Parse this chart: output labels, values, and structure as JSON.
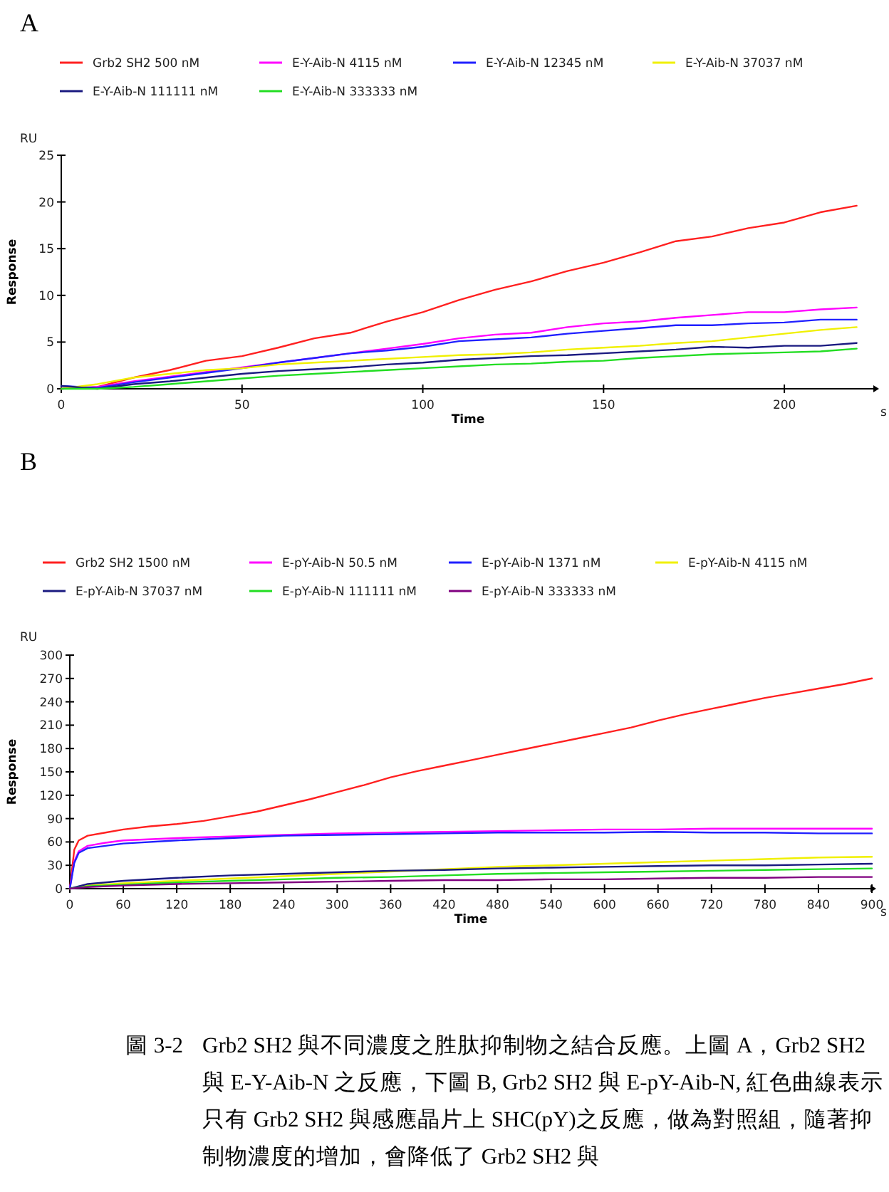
{
  "chart_data": [
    {
      "type": "line",
      "title": "A",
      "xlabel": "Time",
      "ylabel": "Response",
      "legend": "top",
      "xlim": [
        0,
        225
      ],
      "xticks": [
        0,
        50,
        100,
        150,
        200
      ],
      "ylim": [
        0,
        25
      ],
      "yticks": [
        0,
        5,
        10,
        15,
        20,
        25
      ],
      "annotations": [
        "RU",
        "s"
      ],
      "x": [
        0,
        10,
        20,
        30,
        40,
        50,
        60,
        70,
        80,
        90,
        100,
        110,
        120,
        130,
        140,
        150,
        160,
        170,
        180,
        190,
        200,
        210,
        220
      ],
      "series": [
        {
          "name": "Grb2 SH2 500 nM",
          "color": "#ff2020",
          "values": [
            0,
            0.2,
            1.2,
            2.0,
            3.0,
            3.5,
            4.4,
            5.4,
            6.0,
            7.2,
            8.2,
            9.5,
            10.6,
            11.5,
            12.6,
            13.5,
            14.6,
            15.8,
            16.3,
            17.2,
            17.8,
            18.9,
            19.6
          ]
        },
        {
          "name": "E-Y-Aib-N 4115 nM",
          "color": "#ff00ff",
          "values": [
            0,
            0.2,
            0.8,
            1.3,
            1.8,
            2.3,
            2.8,
            3.3,
            3.8,
            4.3,
            4.8,
            5.4,
            5.8,
            6.0,
            6.6,
            7.0,
            7.2,
            7.6,
            7.9,
            8.2,
            8.2,
            8.5,
            8.7
          ]
        },
        {
          "name": "E-Y-Aib-N 12345 nM",
          "color": "#2020ff",
          "values": [
            0.3,
            0.1,
            0.7,
            1.2,
            1.7,
            2.2,
            2.8,
            3.3,
            3.8,
            4.1,
            4.5,
            5.1,
            5.3,
            5.5,
            5.9,
            6.2,
            6.5,
            6.8,
            6.8,
            7.0,
            7.1,
            7.4,
            7.4
          ]
        },
        {
          "name": "E-Y-Aib-N 37037 nM",
          "color": "#f0f000",
          "values": [
            0,
            0.5,
            1.2,
            1.6,
            2.0,
            2.2,
            2.6,
            2.8,
            3.0,
            3.2,
            3.4,
            3.6,
            3.7,
            3.9,
            4.2,
            4.4,
            4.6,
            4.9,
            5.1,
            5.5,
            5.9,
            6.3,
            6.6
          ]
        },
        {
          "name": "E-Y-Aib-N 111111 nM",
          "color": "#1a1a80",
          "values": [
            0.3,
            0,
            0.5,
            0.8,
            1.2,
            1.6,
            1.9,
            2.1,
            2.3,
            2.6,
            2.8,
            3.1,
            3.3,
            3.5,
            3.6,
            3.8,
            4.0,
            4.2,
            4.5,
            4.4,
            4.6,
            4.6,
            4.9
          ]
        },
        {
          "name": "E-Y-Aib-N 333333 nM",
          "color": "#22dd22",
          "values": [
            0,
            0,
            0.2,
            0.5,
            0.8,
            1.1,
            1.4,
            1.6,
            1.8,
            2.0,
            2.2,
            2.4,
            2.6,
            2.7,
            2.9,
            3.0,
            3.3,
            3.5,
            3.7,
            3.8,
            3.9,
            4.0,
            4.3
          ]
        }
      ]
    },
    {
      "type": "line",
      "title": "B",
      "xlabel": "Time",
      "ylabel": "Response",
      "legend": "top",
      "xlim": [
        0,
        900
      ],
      "xticks": [
        0,
        60,
        120,
        180,
        240,
        300,
        360,
        420,
        480,
        540,
        600,
        660,
        720,
        780,
        840,
        900
      ],
      "ylim": [
        0,
        300
      ],
      "yticks": [
        0,
        30,
        60,
        90,
        120,
        150,
        180,
        210,
        240,
        270,
        300
      ],
      "annotations": [
        "RU",
        "s",
        "圖 3-2",
        "Grb2 SH2 與不同濃度之胜肽抑制物之結合反應。上圖 A，Grb2 SH2 與 E-Y-Aib-N 之反應，下圖 B, Grb2 SH2 與 E-pY-Aib-N, 紅色曲線表示只有 Grb2 SH2 與感應晶片上 SHC(pY)之反應，做為對照組，隨著抑制物濃度的增加，會降低了 Grb2 SH2 與"
      ],
      "series": [
        {
          "name": "Grb2 SH2 1500 nM",
          "color": "#ff2020",
          "x": [
            0,
            5,
            10,
            20,
            40,
            60,
            90,
            120,
            150,
            180,
            210,
            240,
            270,
            300,
            330,
            360,
            390,
            420,
            450,
            480,
            510,
            540,
            570,
            600,
            630,
            660,
            690,
            720,
            750,
            780,
            810,
            840,
            870,
            900
          ],
          "values": [
            0,
            50,
            62,
            68,
            72,
            76,
            80,
            83,
            87,
            93,
            99,
            107,
            115,
            124,
            133,
            143,
            151,
            158,
            165,
            172,
            179,
            186,
            193,
            200,
            207,
            216,
            224,
            231,
            238,
            245,
            251,
            257,
            263,
            270
          ]
        },
        {
          "name": "E-pY-Aib-N 50.5 nM",
          "color": "#ff00ff",
          "x": [
            0,
            5,
            10,
            20,
            40,
            60,
            120,
            180,
            240,
            300,
            360,
            420,
            480,
            540,
            600,
            660,
            720,
            780,
            840,
            900
          ],
          "values": [
            0,
            35,
            48,
            55,
            59,
            62,
            65,
            67,
            69,
            71,
            72,
            73,
            74,
            75,
            76,
            76,
            77,
            77,
            77,
            77
          ]
        },
        {
          "name": "E-pY-Aib-N 1371 nM",
          "color": "#2020ff",
          "x": [
            0,
            5,
            10,
            20,
            40,
            60,
            120,
            180,
            240,
            300,
            360,
            420,
            480,
            540,
            600,
            660,
            720,
            780,
            840,
            900
          ],
          "values": [
            0,
            33,
            46,
            52,
            55,
            58,
            62,
            65,
            68,
            69,
            70,
            71,
            72,
            72,
            72,
            73,
            72,
            72,
            71,
            71
          ]
        },
        {
          "name": "E-pY-Aib-N 4115 nM",
          "color": "#f0f000",
          "x": [
            0,
            20,
            60,
            120,
            180,
            240,
            300,
            360,
            420,
            480,
            540,
            600,
            660,
            720,
            780,
            840,
            900
          ],
          "values": [
            0,
            4,
            7,
            10,
            13,
            16,
            19,
            22,
            25,
            28,
            30,
            32,
            34,
            36,
            38,
            40,
            41
          ]
        },
        {
          "name": "E-pY-Aib-N 37037 nM",
          "color": "#1a1a80",
          "x": [
            0,
            20,
            60,
            120,
            180,
            240,
            300,
            360,
            420,
            480,
            540,
            600,
            660,
            720,
            780,
            840,
            900
          ],
          "values": [
            0,
            6,
            10,
            14,
            17,
            19,
            21,
            23,
            24,
            26,
            27,
            28,
            29,
            30,
            30,
            31,
            32
          ]
        },
        {
          "name": "E-pY-Aib-N 111111 nM",
          "color": "#22dd22",
          "x": [
            0,
            20,
            60,
            120,
            180,
            240,
            300,
            360,
            420,
            480,
            540,
            600,
            660,
            720,
            780,
            840,
            900
          ],
          "values": [
            0,
            3,
            5,
            8,
            10,
            12,
            14,
            15,
            17,
            19,
            20,
            21,
            22,
            23,
            24,
            25,
            26
          ]
        },
        {
          "name": "E-pY-Aib-N 333333 nM",
          "color": "#800080",
          "x": [
            0,
            20,
            60,
            120,
            180,
            240,
            300,
            360,
            420,
            480,
            540,
            600,
            660,
            720,
            780,
            840,
            900
          ],
          "values": [
            0,
            2,
            4,
            6,
            7,
            8,
            9,
            10,
            11,
            11,
            12,
            12,
            13,
            14,
            14,
            15,
            15
          ]
        }
      ]
    }
  ]
}
